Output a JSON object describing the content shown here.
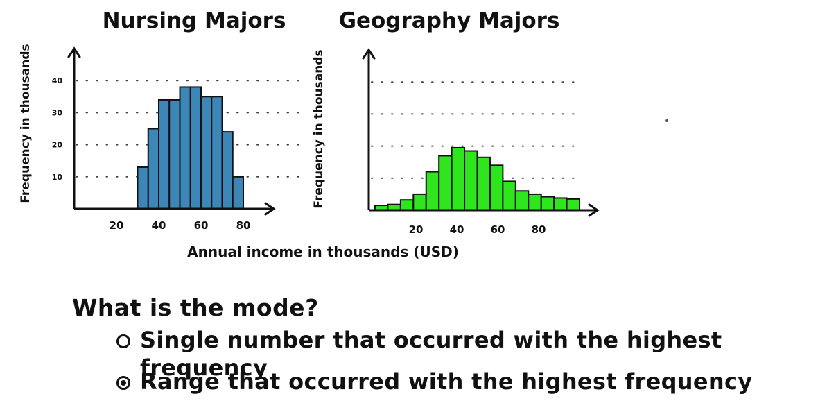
{
  "shared": {
    "xlabel": "Annual income in thousands (USD)",
    "ylabel": "Frequency in thousands"
  },
  "chart_data": [
    {
      "type": "bar",
      "title": "Nursing Majors",
      "color": "#3d87b8",
      "bin_width": 5,
      "bin_starts": [
        30,
        35,
        40,
        45,
        50,
        55,
        60,
        65,
        70,
        75
      ],
      "values": [
        13,
        25,
        34,
        34,
        38,
        38,
        35,
        35,
        24,
        10
      ],
      "ylabel": "Frequency in thousands",
      "xticks": [
        20,
        40,
        60,
        80
      ],
      "yticks": [
        10,
        20,
        30,
        40
      ],
      "xlim": [
        0,
        100
      ],
      "ylim": [
        0,
        50
      ],
      "grid": "dotted horizontal"
    },
    {
      "type": "bar",
      "title": "Geography Majors",
      "color": "#2ee51e",
      "bin_width": 6.25,
      "bin_starts": [
        0,
        6.25,
        12.5,
        18.75,
        25,
        31.25,
        37.5,
        43.75,
        50,
        56.25,
        62.5,
        68.75,
        75,
        81.25,
        87.5,
        93.75
      ],
      "values": [
        1.5,
        1.8,
        3.2,
        5,
        12,
        17,
        19.5,
        18.5,
        16.5,
        14,
        9,
        6,
        5,
        4.2,
        3.8,
        3.5
      ],
      "ylabel": "Frequency in thousands",
      "xticks": [
        20,
        40,
        60,
        80
      ],
      "xlim": [
        0,
        100
      ],
      "ylim": [
        0,
        50
      ],
      "grid": "dotted horizontal"
    }
  ],
  "question": {
    "text": "What is the mode?",
    "options": [
      {
        "label": "Single number that occurred with the highest frequency",
        "selected": false
      },
      {
        "label": "Range that occurred with the highest frequency",
        "selected": true
      }
    ]
  }
}
